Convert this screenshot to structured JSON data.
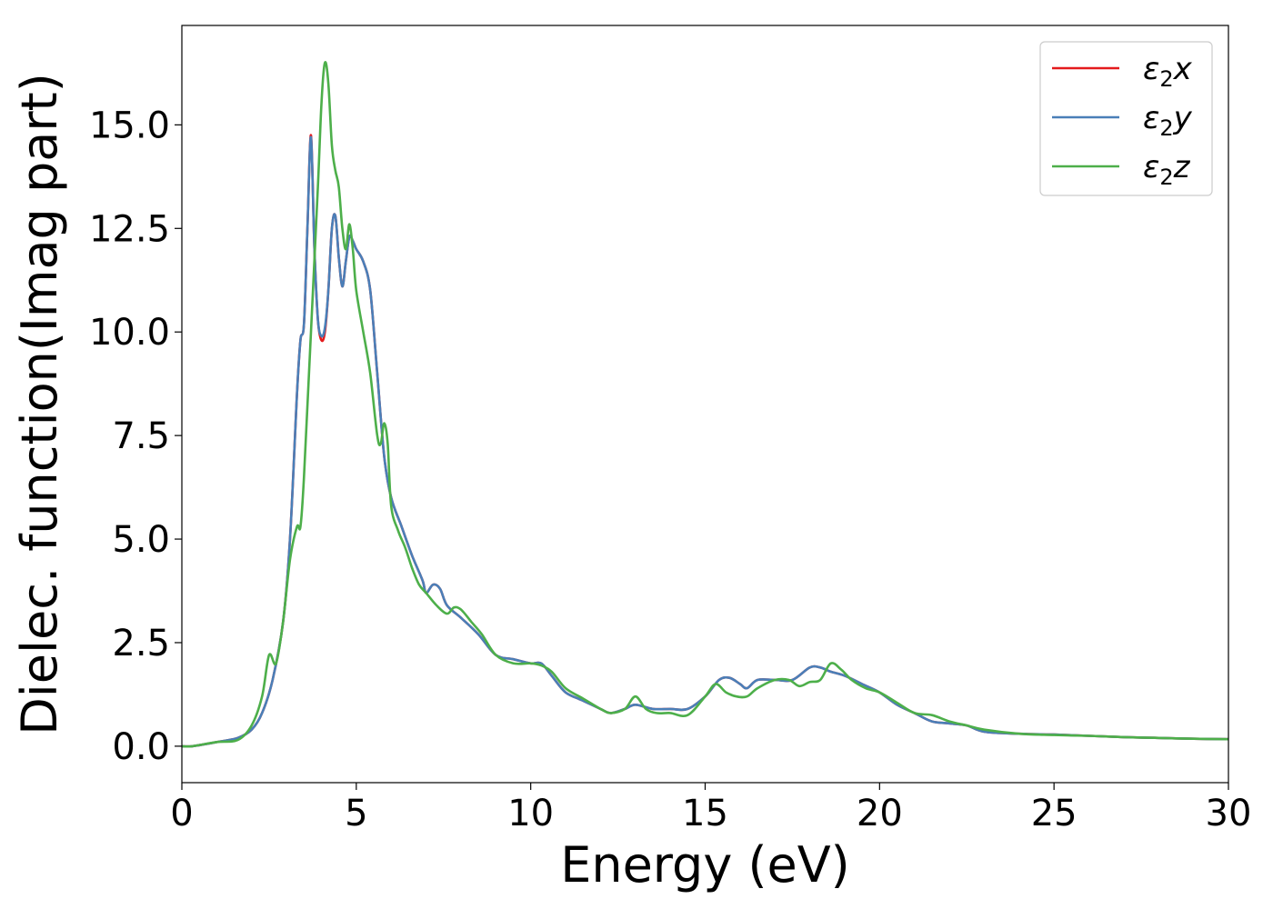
{
  "chart_data": {
    "type": "line",
    "title": "",
    "xlabel": "Energy (eV)",
    "ylabel": "Dielec. function(Imag part)",
    "xlim": [
      0,
      30
    ],
    "ylim": [
      -0.88,
      17.4
    ],
    "x_ticks": [
      0,
      5,
      10,
      15,
      20,
      25,
      30
    ],
    "x_tick_labels": [
      "0",
      "5",
      "10",
      "15",
      "20",
      "25",
      "30"
    ],
    "y_ticks": [
      0.0,
      2.5,
      5.0,
      7.5,
      10.0,
      12.5,
      15.0
    ],
    "y_tick_labels": [
      "0.0",
      "2.5",
      "5.0",
      "7.5",
      "10.0",
      "12.5",
      "15.0"
    ],
    "grid": false,
    "legend_position": "top-right",
    "series": [
      {
        "name": "ε2x",
        "legend_base": "ε",
        "legend_sub": "2",
        "legend_suffix": "x",
        "color": "#e41a1c",
        "points": [
          [
            0,
            0.0
          ],
          [
            0.3,
            0.0
          ],
          [
            1.0,
            0.1
          ],
          [
            1.6,
            0.2
          ],
          [
            2.0,
            0.4
          ],
          [
            2.3,
            0.8
          ],
          [
            2.6,
            1.6
          ],
          [
            2.9,
            3.0
          ],
          [
            3.1,
            5.0
          ],
          [
            3.3,
            8.5
          ],
          [
            3.4,
            9.8
          ],
          [
            3.5,
            10.2
          ],
          [
            3.6,
            12.5
          ],
          [
            3.7,
            14.75
          ],
          [
            3.8,
            12.0
          ],
          [
            3.9,
            10.3
          ],
          [
            4.0,
            9.8
          ],
          [
            4.1,
            10.0
          ],
          [
            4.2,
            11.0
          ],
          [
            4.3,
            12.5
          ],
          [
            4.4,
            12.8
          ],
          [
            4.5,
            11.8
          ],
          [
            4.6,
            11.1
          ],
          [
            4.7,
            11.7
          ],
          [
            4.8,
            12.3
          ],
          [
            4.9,
            12.2
          ],
          [
            5.0,
            12.0
          ],
          [
            5.2,
            11.7
          ],
          [
            5.4,
            11.0
          ],
          [
            5.6,
            9.0
          ],
          [
            5.8,
            7.0
          ],
          [
            6.0,
            6.0
          ],
          [
            6.3,
            5.3
          ],
          [
            6.6,
            4.6
          ],
          [
            6.9,
            4.0
          ],
          [
            7.0,
            3.7
          ],
          [
            7.2,
            3.9
          ],
          [
            7.4,
            3.8
          ],
          [
            7.6,
            3.4
          ],
          [
            8.0,
            3.1
          ],
          [
            8.5,
            2.7
          ],
          [
            9.0,
            2.2
          ],
          [
            9.5,
            2.1
          ],
          [
            10.0,
            2.0
          ],
          [
            10.3,
            2.0
          ],
          [
            10.6,
            1.7
          ],
          [
            11.0,
            1.3
          ],
          [
            11.5,
            1.1
          ],
          [
            12.0,
            0.9
          ],
          [
            12.3,
            0.8
          ],
          [
            12.7,
            0.9
          ],
          [
            13.0,
            1.0
          ],
          [
            13.5,
            0.9
          ],
          [
            14.0,
            0.9
          ],
          [
            14.5,
            0.9
          ],
          [
            15.0,
            1.2
          ],
          [
            15.4,
            1.6
          ],
          [
            15.7,
            1.65
          ],
          [
            16.0,
            1.5
          ],
          [
            16.2,
            1.4
          ],
          [
            16.5,
            1.6
          ],
          [
            17.0,
            1.6
          ],
          [
            17.5,
            1.6
          ],
          [
            18.0,
            1.9
          ],
          [
            18.3,
            1.9
          ],
          [
            18.6,
            1.8
          ],
          [
            19.0,
            1.7
          ],
          [
            19.5,
            1.5
          ],
          [
            20.0,
            1.3
          ],
          [
            20.5,
            1.0
          ],
          [
            21.0,
            0.8
          ],
          [
            21.5,
            0.6
          ],
          [
            22.0,
            0.55
          ],
          [
            22.5,
            0.5
          ],
          [
            23.0,
            0.35
          ],
          [
            24.0,
            0.3
          ],
          [
            25.0,
            0.28
          ],
          [
            26.0,
            0.25
          ],
          [
            27.0,
            0.22
          ],
          [
            28.0,
            0.2
          ],
          [
            29.0,
            0.18
          ],
          [
            30.0,
            0.17
          ]
        ]
      },
      {
        "name": "ε2y",
        "legend_base": "ε",
        "legend_sub": "2",
        "legend_suffix": "y",
        "color": "#4a7fb8",
        "points": [
          [
            0,
            0.0
          ],
          [
            0.3,
            0.0
          ],
          [
            1.0,
            0.1
          ],
          [
            1.6,
            0.2
          ],
          [
            2.0,
            0.4
          ],
          [
            2.3,
            0.8
          ],
          [
            2.6,
            1.6
          ],
          [
            2.9,
            3.0
          ],
          [
            3.1,
            5.0
          ],
          [
            3.3,
            8.5
          ],
          [
            3.4,
            9.8
          ],
          [
            3.5,
            10.2
          ],
          [
            3.6,
            12.5
          ],
          [
            3.7,
            14.7
          ],
          [
            3.8,
            12.0
          ],
          [
            3.9,
            10.3
          ],
          [
            4.0,
            9.9
          ],
          [
            4.1,
            10.1
          ],
          [
            4.2,
            11.0
          ],
          [
            4.3,
            12.5
          ],
          [
            4.4,
            12.8
          ],
          [
            4.5,
            11.8
          ],
          [
            4.6,
            11.1
          ],
          [
            4.7,
            11.7
          ],
          [
            4.8,
            12.3
          ],
          [
            4.9,
            12.2
          ],
          [
            5.0,
            12.0
          ],
          [
            5.2,
            11.7
          ],
          [
            5.4,
            11.0
          ],
          [
            5.6,
            9.0
          ],
          [
            5.8,
            7.0
          ],
          [
            6.0,
            6.0
          ],
          [
            6.3,
            5.3
          ],
          [
            6.6,
            4.6
          ],
          [
            6.9,
            4.0
          ],
          [
            7.0,
            3.7
          ],
          [
            7.2,
            3.9
          ],
          [
            7.4,
            3.8
          ],
          [
            7.6,
            3.4
          ],
          [
            8.0,
            3.1
          ],
          [
            8.5,
            2.7
          ],
          [
            9.0,
            2.2
          ],
          [
            9.5,
            2.1
          ],
          [
            10.0,
            2.0
          ],
          [
            10.3,
            2.0
          ],
          [
            10.6,
            1.7
          ],
          [
            11.0,
            1.3
          ],
          [
            11.5,
            1.1
          ],
          [
            12.0,
            0.9
          ],
          [
            12.3,
            0.8
          ],
          [
            12.7,
            0.9
          ],
          [
            13.0,
            1.0
          ],
          [
            13.5,
            0.9
          ],
          [
            14.0,
            0.9
          ],
          [
            14.5,
            0.9
          ],
          [
            15.0,
            1.2
          ],
          [
            15.4,
            1.6
          ],
          [
            15.7,
            1.65
          ],
          [
            16.0,
            1.5
          ],
          [
            16.2,
            1.4
          ],
          [
            16.5,
            1.6
          ],
          [
            17.0,
            1.6
          ],
          [
            17.5,
            1.6
          ],
          [
            18.0,
            1.9
          ],
          [
            18.3,
            1.9
          ],
          [
            18.6,
            1.8
          ],
          [
            19.0,
            1.7
          ],
          [
            19.5,
            1.5
          ],
          [
            20.0,
            1.3
          ],
          [
            20.5,
            1.0
          ],
          [
            21.0,
            0.8
          ],
          [
            21.5,
            0.6
          ],
          [
            22.0,
            0.55
          ],
          [
            22.5,
            0.5
          ],
          [
            23.0,
            0.35
          ],
          [
            24.0,
            0.3
          ],
          [
            25.0,
            0.28
          ],
          [
            26.0,
            0.25
          ],
          [
            27.0,
            0.22
          ],
          [
            28.0,
            0.2
          ],
          [
            29.0,
            0.18
          ],
          [
            30.0,
            0.17
          ]
        ]
      },
      {
        "name": "ε2z",
        "legend_base": "ε",
        "legend_sub": "2",
        "legend_suffix": "z",
        "color": "#4daf4a",
        "points": [
          [
            0,
            0.0
          ],
          [
            0.3,
            0.0
          ],
          [
            1.0,
            0.1
          ],
          [
            1.6,
            0.15
          ],
          [
            2.0,
            0.5
          ],
          [
            2.3,
            1.2
          ],
          [
            2.5,
            2.2
          ],
          [
            2.7,
            2.0
          ],
          [
            2.9,
            3.0
          ],
          [
            3.1,
            4.5
          ],
          [
            3.3,
            5.3
          ],
          [
            3.4,
            5.3
          ],
          [
            3.5,
            6.5
          ],
          [
            3.7,
            10.0
          ],
          [
            3.9,
            13.5
          ],
          [
            4.0,
            15.5
          ],
          [
            4.1,
            16.5
          ],
          [
            4.2,
            16.0
          ],
          [
            4.3,
            14.5
          ],
          [
            4.4,
            13.9
          ],
          [
            4.5,
            13.5
          ],
          [
            4.6,
            12.5
          ],
          [
            4.7,
            12.0
          ],
          [
            4.8,
            12.6
          ],
          [
            4.9,
            12.0
          ],
          [
            5.0,
            11.0
          ],
          [
            5.2,
            10.0
          ],
          [
            5.4,
            9.0
          ],
          [
            5.6,
            7.5
          ],
          [
            5.7,
            7.3
          ],
          [
            5.8,
            7.8
          ],
          [
            5.9,
            7.3
          ],
          [
            6.0,
            5.8
          ],
          [
            6.2,
            5.2
          ],
          [
            6.4,
            4.8
          ],
          [
            6.6,
            4.3
          ],
          [
            6.8,
            3.9
          ],
          [
            7.0,
            3.7
          ],
          [
            7.3,
            3.4
          ],
          [
            7.6,
            3.2
          ],
          [
            7.8,
            3.35
          ],
          [
            8.0,
            3.3
          ],
          [
            8.3,
            3.0
          ],
          [
            8.6,
            2.7
          ],
          [
            9.0,
            2.2
          ],
          [
            9.5,
            2.0
          ],
          [
            10.0,
            2.0
          ],
          [
            10.3,
            1.95
          ],
          [
            10.6,
            1.8
          ],
          [
            11.0,
            1.4
          ],
          [
            11.5,
            1.15
          ],
          [
            12.0,
            0.9
          ],
          [
            12.3,
            0.8
          ],
          [
            12.7,
            0.9
          ],
          [
            13.0,
            1.2
          ],
          [
            13.3,
            0.9
          ],
          [
            13.6,
            0.8
          ],
          [
            14.0,
            0.8
          ],
          [
            14.5,
            0.75
          ],
          [
            15.0,
            1.2
          ],
          [
            15.3,
            1.5
          ],
          [
            15.6,
            1.3
          ],
          [
            15.9,
            1.2
          ],
          [
            16.2,
            1.2
          ],
          [
            16.5,
            1.4
          ],
          [
            17.0,
            1.6
          ],
          [
            17.4,
            1.6
          ],
          [
            17.7,
            1.45
          ],
          [
            18.0,
            1.55
          ],
          [
            18.3,
            1.6
          ],
          [
            18.6,
            2.0
          ],
          [
            18.9,
            1.85
          ],
          [
            19.2,
            1.6
          ],
          [
            19.6,
            1.4
          ],
          [
            20.0,
            1.3
          ],
          [
            20.5,
            1.05
          ],
          [
            21.0,
            0.8
          ],
          [
            21.5,
            0.75
          ],
          [
            22.0,
            0.6
          ],
          [
            22.5,
            0.5
          ],
          [
            23.0,
            0.4
          ],
          [
            24.0,
            0.3
          ],
          [
            25.0,
            0.27
          ],
          [
            26.0,
            0.25
          ],
          [
            27.0,
            0.22
          ],
          [
            28.0,
            0.2
          ],
          [
            29.0,
            0.18
          ],
          [
            30.0,
            0.17
          ]
        ]
      }
    ]
  }
}
